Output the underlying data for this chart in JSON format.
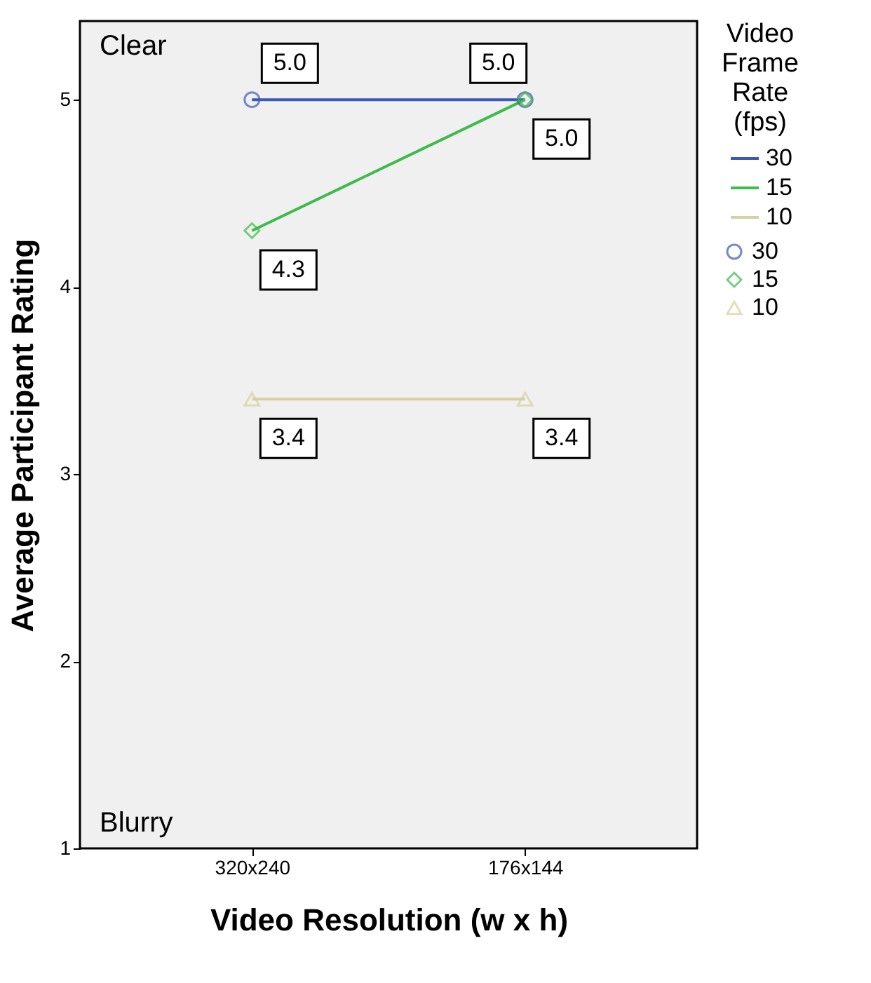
{
  "chart_data": {
    "type": "line",
    "xlabel": "Video Resolution (w x h)",
    "ylabel": "Average Participant Rating",
    "legend_title": "Video Frame Rate (fps)",
    "categories": [
      "320x240",
      "176x144"
    ],
    "series": [
      {
        "name": "30",
        "color": "#3e58b5",
        "marker": "circle",
        "values": [
          5.0,
          5.0
        ],
        "value_labels": [
          "5.0",
          "5.0"
        ]
      },
      {
        "name": "15",
        "color": "#3dbb4b",
        "marker": "diamond",
        "values": [
          4.3,
          5.0
        ],
        "value_labels": [
          "4.3",
          "5.0"
        ]
      },
      {
        "name": "10",
        "color": "#d6d1a0",
        "marker": "triangle",
        "values": [
          3.4,
          3.4
        ],
        "value_labels": [
          "3.4",
          "3.4"
        ]
      }
    ],
    "ylim": [
      1,
      5.42
    ],
    "yticks": [
      1,
      2,
      3,
      4,
      5
    ],
    "grid": false,
    "legend": "right",
    "annotations": [
      "Clear",
      "Blurry"
    ]
  }
}
